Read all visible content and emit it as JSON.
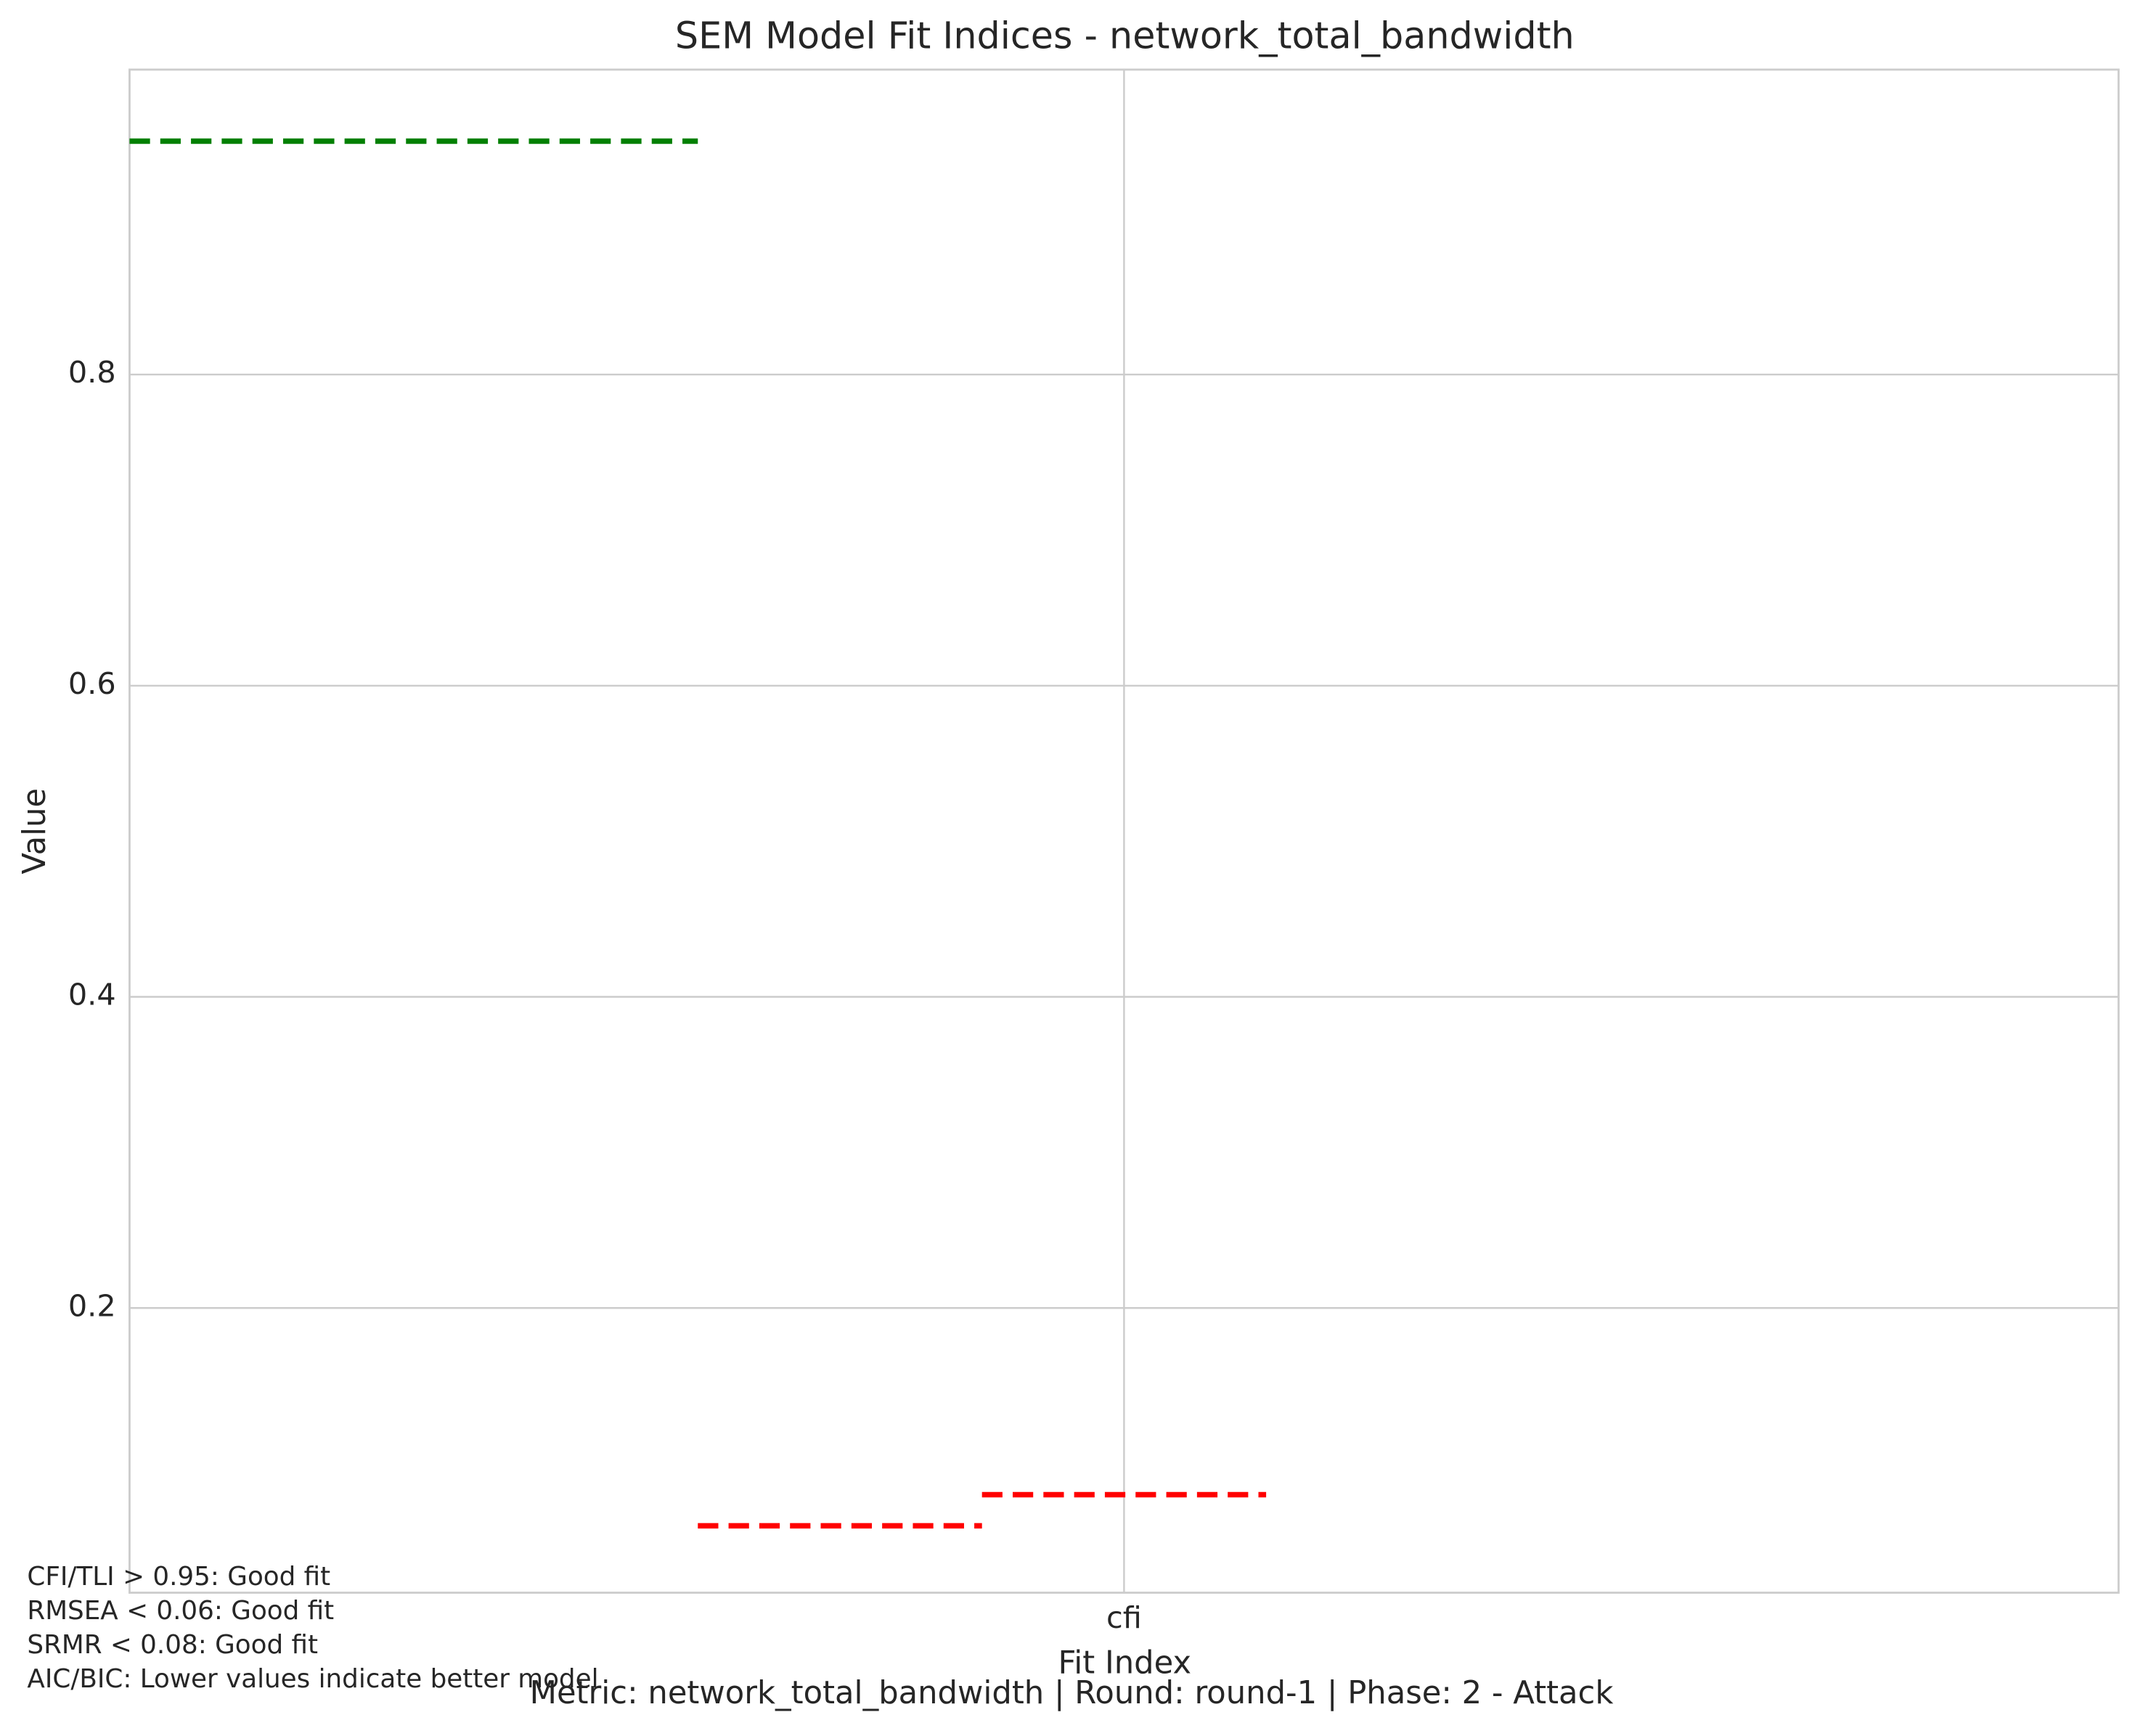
{
  "chart_data": {
    "type": "reference_lines",
    "title": "SEM Model Fit Indices - network_total_bandwidth",
    "xlabel": "Fit Index",
    "ylabel": "Value",
    "categories": [
      "cfi"
    ],
    "xlim": [
      -3.5,
      3.5
    ],
    "ylim": [
      0.017,
      0.996
    ],
    "yticks": [
      0.2,
      0.4,
      0.6,
      0.8
    ],
    "grid": true,
    "lines": [
      {
        "y": 0.95,
        "x": [
          -3.5,
          -1.5
        ],
        "color": "#008000"
      },
      {
        "y": 0.06,
        "x": [
          -1.5,
          -0.5
        ],
        "color": "#ff0000"
      },
      {
        "y": 0.08,
        "x": [
          -0.5,
          0.5
        ],
        "color": "#ff0000"
      }
    ],
    "notes": [
      "CFI/TLI > 0.95: Good fit",
      "RMSEA < 0.06: Good fit",
      "SRMR < 0.08: Good fit",
      "AIC/BIC: Lower values indicate better model"
    ],
    "footer": "Metric: network_total_bandwidth | Round: round-1 | Phase: 2 - Attack"
  }
}
